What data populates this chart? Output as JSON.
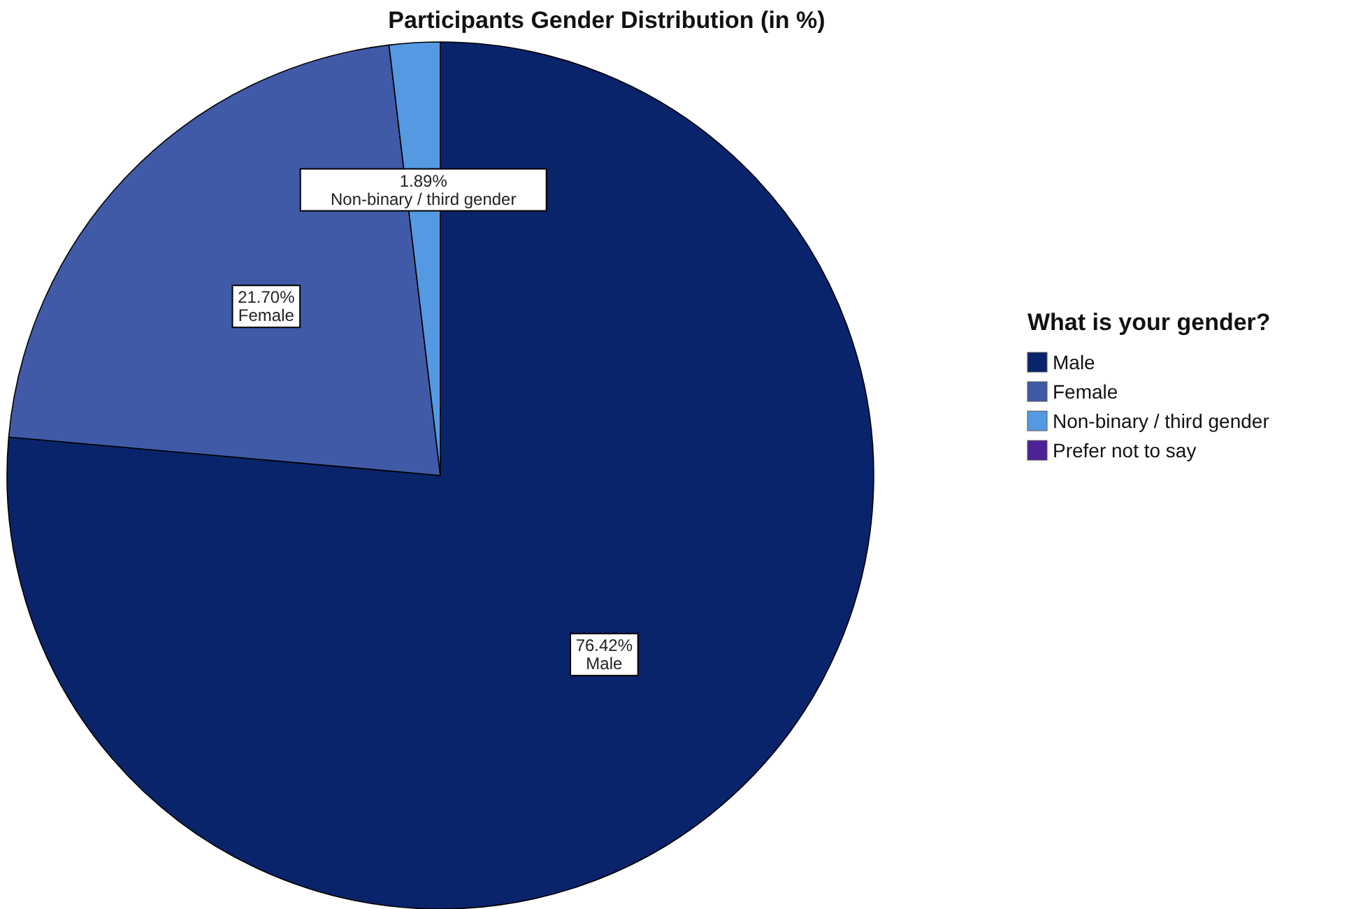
{
  "chart_data": {
    "type": "pie",
    "title": "Participants Gender Distribution (in %)",
    "categories": [
      "Male",
      "Female",
      "Non-binary / third gender",
      "Prefer not to say"
    ],
    "values": [
      76.42,
      21.7,
      1.89,
      0
    ],
    "colors": [
      "#0a246b",
      "#405aa8",
      "#5599e3",
      "#4d2297"
    ],
    "value_labels": [
      "76.42%",
      "21.70%",
      "1.89%",
      null
    ],
    "legend_title": "What is your gender?",
    "legend": "right"
  }
}
